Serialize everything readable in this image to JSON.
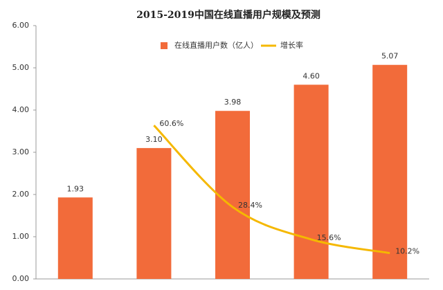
{
  "chart_data": {
    "type": "bar",
    "title": "2015-2019中国在线直播用户规模及预测",
    "categories": [
      null,
      null,
      null,
      null,
      null
    ],
    "series": [
      {
        "name": "在线直播用户数（亿人）",
        "type": "bar",
        "color": "#f26b3a",
        "values": [
          1.93,
          3.1,
          3.98,
          4.6,
          5.07
        ],
        "value_labels": [
          "1.93",
          "3.10",
          "3.98",
          "4.60",
          "5.07"
        ]
      },
      {
        "name": "增长率",
        "type": "line",
        "axis": "y2",
        "color": "#f5b800",
        "values": [
          null,
          60.6,
          28.4,
          15.6,
          10.2
        ],
        "value_labels": [
          null,
          "60.6%",
          "28.4%",
          "15.6%",
          "10.2%"
        ]
      }
    ],
    "ylim": [
      0,
      6
    ],
    "yticks": [
      {
        "value": 0,
        "label": "0.00"
      },
      {
        "value": 1,
        "label": "1.00"
      },
      {
        "value": 2,
        "label": "2.00"
      },
      {
        "value": 3,
        "label": "3.00"
      },
      {
        "value": 4,
        "label": "4.00"
      },
      {
        "value": 5,
        "label": "5.00"
      },
      {
        "value": 6,
        "label": "6.00"
      }
    ],
    "y2lim": [
      0,
      100
    ],
    "grid": false,
    "legend": "top"
  }
}
